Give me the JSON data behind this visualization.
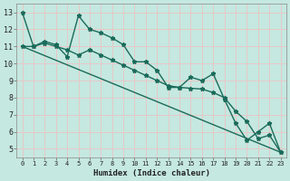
{
  "xlabel": "Humidex (Indice chaleur)",
  "background_color": "#c5e8e0",
  "grid_color": "#e8c8c8",
  "line_color": "#1a6b5a",
  "xlim": [
    -0.5,
    23.5
  ],
  "ylim": [
    4.5,
    13.5
  ],
  "xticks": [
    0,
    1,
    2,
    3,
    4,
    5,
    6,
    7,
    8,
    9,
    10,
    11,
    12,
    13,
    14,
    15,
    16,
    17,
    18,
    19,
    20,
    21,
    22,
    23
  ],
  "yticks": [
    5,
    6,
    7,
    8,
    9,
    10,
    11,
    12,
    13
  ],
  "series1_x": [
    0,
    1,
    2,
    3,
    4,
    5,
    6,
    7,
    8,
    9,
    10,
    11,
    12,
    13,
    14,
    15,
    16,
    17,
    18,
    19,
    20,
    21,
    22,
    23
  ],
  "series1_y": [
    13.0,
    11.0,
    11.3,
    11.1,
    10.4,
    12.8,
    12.0,
    11.8,
    11.5,
    11.1,
    10.1,
    10.1,
    9.6,
    8.6,
    8.6,
    9.2,
    9.0,
    9.4,
    7.9,
    6.5,
    5.5,
    6.0,
    6.5,
    4.8
  ],
  "series2_x": [
    0,
    1,
    2,
    3,
    4,
    5,
    6,
    7,
    8,
    9,
    10,
    11,
    12,
    13,
    14,
    15,
    16,
    17,
    18,
    19,
    20,
    21,
    22,
    23
  ],
  "series2_y": [
    11.0,
    11.0,
    11.2,
    11.0,
    10.8,
    10.5,
    10.8,
    10.5,
    10.2,
    9.9,
    9.6,
    9.3,
    9.0,
    8.7,
    8.6,
    8.55,
    8.5,
    8.3,
    8.0,
    7.2,
    6.6,
    5.6,
    5.8,
    4.8
  ],
  "series3_x": [
    0,
    23
  ],
  "series3_y": [
    11.0,
    4.8
  ],
  "marker": "*",
  "marker_size": 3.5,
  "linewidth": 1.0,
  "tick_fontsize_x": 5.0,
  "tick_fontsize_y": 6.0,
  "xlabel_fontsize": 6.5
}
